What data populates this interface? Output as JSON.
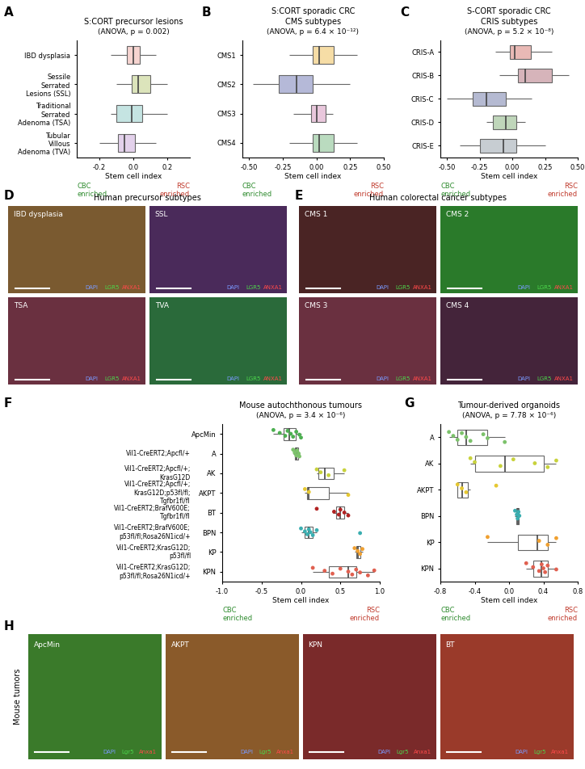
{
  "chart_data": [
    {
      "type": "box",
      "panel": "A",
      "title": "S:CORT precursor lesions",
      "note": "(ANOVA, p = 0.002)",
      "categories": [
        "IBD dysplasia",
        "Sessile Serrated Lesions (SSL)",
        "Traditional Serrated Adenoma (TSA)",
        "Tubular Villous Adenoma (TVA)"
      ],
      "colors": [
        "#e8847a",
        "#9bb43c",
        "#5ab4ac",
        "#b07cc6"
      ],
      "boxes": [
        {
          "low": -0.13,
          "q1": -0.04,
          "median": 0.0,
          "q3": 0.04,
          "high": 0.13
        },
        {
          "low": -0.1,
          "q1": -0.01,
          "median": 0.03,
          "q3": 0.1,
          "high": 0.2
        },
        {
          "low": -0.13,
          "q1": -0.1,
          "median": -0.01,
          "q3": 0.05,
          "high": 0.2
        },
        {
          "low": -0.2,
          "q1": -0.09,
          "median": -0.05,
          "q3": 0.01,
          "high": 0.13
        }
      ],
      "xlabel": "Stem cell index",
      "xlim": [
        -0.33,
        0.33
      ],
      "xticks": [
        -0.2,
        {
          "value": 0,
          "label": "0.0"
        },
        0.2
      ],
      "annotations": [
        {
          "text": "CBC enriched",
          "color": "#2e8b2e"
        },
        {
          "text": "RSC enriched",
          "color": "#c0392b"
        }
      ]
    },
    {
      "type": "box",
      "panel": "B",
      "title": "S:CORT sporadic CRC",
      "subtitle": "CMS subtypes",
      "note": "(ANOVA, p = 6.4 × 10⁻¹²)",
      "categories": [
        "CMS1",
        "CMS2",
        "CMS3",
        "CMS4"
      ],
      "colors": [
        "#e69f00",
        "#2b3990",
        "#c0609b",
        "#3a9a4a"
      ],
      "boxes": [
        {
          "low": -0.2,
          "q1": -0.03,
          "median": 0.02,
          "q3": 0.13,
          "high": 0.3
        },
        {
          "low": -0.47,
          "q1": -0.28,
          "median": -0.15,
          "q3": -0.03,
          "high": 0.25
        },
        {
          "low": -0.17,
          "q1": -0.04,
          "median": 0.0,
          "q3": 0.07,
          "high": 0.12
        },
        {
          "low": -0.2,
          "q1": -0.03,
          "median": 0.02,
          "q3": 0.13,
          "high": 0.3
        }
      ],
      "xlabel": "Stem cell index",
      "xlim": [
        -0.55,
        0.5
      ],
      "xticks": [
        {
          "value": -0.5,
          "label": "-0.50"
        },
        {
          "value": -0.25,
          "label": "-0.25"
        },
        {
          "value": 0,
          "label": "0.00"
        },
        {
          "value": 0.25,
          "label": "0.25"
        },
        {
          "value": 0.5,
          "label": "0.50"
        }
      ],
      "annotations": [
        {
          "text": "CBC enriched",
          "color": "#2e8b2e"
        },
        {
          "text": "RSC enriched",
          "color": "#c0392b"
        }
      ]
    },
    {
      "type": "box",
      "panel": "C",
      "title": "S-CORT sporadic CRC",
      "subtitle": "CRIS subtypes",
      "note": "(ANOVA, p = 5.2 × 10⁻⁸)",
      "categories": [
        "CRIS-A",
        "CRIS-B",
        "CRIS-C",
        "CRIS-D",
        "CRIS-E"
      ],
      "colors": [
        "#c0392b",
        "#8b2a3a",
        "#2b3a80",
        "#4a8a3a",
        "#607080"
      ],
      "boxes": [
        {
          "low": -0.13,
          "q1": -0.02,
          "median": 0.02,
          "q3": 0.14,
          "high": 0.3
        },
        {
          "low": -0.1,
          "q1": 0.04,
          "median": 0.1,
          "q3": 0.3,
          "high": 0.43
        },
        {
          "low": -0.5,
          "q1": -0.3,
          "median": -0.2,
          "q3": -0.05,
          "high": 0.15
        },
        {
          "low": -0.2,
          "q1": -0.15,
          "median": -0.05,
          "q3": 0.03,
          "high": 0.1
        },
        {
          "low": -0.4,
          "q1": -0.25,
          "median": -0.07,
          "q3": 0.03,
          "high": 0.25
        }
      ],
      "xlabel": "Stem cell index",
      "xlim": [
        -0.55,
        0.5
      ],
      "xticks": [
        {
          "value": -0.5,
          "label": "-0.50"
        },
        {
          "value": -0.25,
          "label": "-0.25"
        },
        {
          "value": 0,
          "label": "0.00"
        },
        {
          "value": 0.25,
          "label": "0.25"
        },
        {
          "value": 0.5,
          "label": "0.50"
        }
      ],
      "annotations": [
        {
          "text": "CBC enriched",
          "color": "#2e8b2e"
        },
        {
          "text": "RSC enriched",
          "color": "#c0392b"
        }
      ]
    },
    {
      "type": "box",
      "panel": "F",
      "title": "Mouse autochthonous tumours",
      "note": "(ANOVA, p = 3.4 × 10⁻⁶)",
      "categories": [
        "ApcMin",
        "A",
        "AK",
        "AKPT",
        "BT",
        "BPN",
        "KP",
        "KPN"
      ],
      "genotypes": [
        null,
        "Vil1-CreERT2;Apcfl/+",
        "Vil1-CreERT2;Apcfl/+;KrasG12D",
        "Vil1-CreERT2;Apcfl/+;KrasG12D;p53fl/fl;Tgfbr1fl/fl",
        "Vil1-CreERT2;BrafV600E;Tgfbr1fl/fl",
        "Vil1-CreERT2;BrafV600E;p53fl/fl;Rosa26N1icd/+",
        "Vil1-CreERT2;KrasG12D;p53fl/fl",
        "Vil1-CreERT2;KrasG12D;p53fl/fl;Rosa26N1icd/+"
      ],
      "colors": [
        "#4caf50",
        "#7cc26b",
        "#c8d23c",
        "#e6c832",
        "#b22222",
        "#3aaeb0",
        "#f0a030",
        "#e06050"
      ],
      "boxes": [
        {
          "low": -0.35,
          "q1": -0.22,
          "median": -0.15,
          "q3": -0.07,
          "high": 0.0
        },
        {
          "low": -0.1,
          "q1": -0.08,
          "median": -0.06,
          "q3": -0.04,
          "high": -0.02
        },
        {
          "low": 0.2,
          "q1": 0.22,
          "median": 0.3,
          "q3": 0.42,
          "high": 0.55
        },
        {
          "low": 0.05,
          "q1": 0.08,
          "median": 0.1,
          "q3": 0.35,
          "high": 0.6
        },
        {
          "low": 0.4,
          "q1": 0.45,
          "median": 0.5,
          "q3": 0.55,
          "high": 0.6
        },
        {
          "low": 0.0,
          "q1": 0.05,
          "median": 0.1,
          "q3": 0.15,
          "high": 0.2
        },
        {
          "low": 0.68,
          "q1": 0.7,
          "median": 0.72,
          "q3": 0.75,
          "high": 0.78
        },
        {
          "low": 0.15,
          "q1": 0.35,
          "median": 0.6,
          "q3": 0.7,
          "high": 0.93
        }
      ],
      "points": [
        [
          -0.35,
          -0.27,
          -0.2,
          -0.17,
          -0.13,
          -0.1,
          -0.06,
          -0.02,
          0.0
        ],
        [
          -0.1,
          -0.08,
          -0.06,
          -0.05,
          -0.03,
          -0.02
        ],
        [
          0.2,
          0.25,
          0.35,
          0.55
        ],
        [
          0.05,
          0.1,
          0.6
        ],
        [
          0.2,
          0.42,
          0.48,
          0.5,
          0.55,
          0.6
        ],
        [
          0.0,
          0.05,
          0.08,
          0.1,
          0.12,
          0.15,
          0.2,
          0.75
        ],
        [
          0.68,
          0.72,
          0.75,
          0.78
        ],
        [
          0.15,
          0.3,
          0.4,
          0.5,
          0.6,
          0.65,
          0.7,
          0.75,
          0.85,
          0.93
        ]
      ],
      "xlabel": "Stem cell index",
      "xlim": [
        -1.0,
        1.0
      ],
      "xticks": [
        {
          "value": -1.0,
          "label": "-1.0"
        },
        {
          "value": -0.5,
          "label": "-0.5"
        },
        {
          "value": 0,
          "label": "0.0"
        },
        {
          "value": 0.5,
          "label": "0.5"
        },
        {
          "value": 1.0,
          "label": "1.0"
        }
      ],
      "annotations": [
        {
          "text": "CBC enriched",
          "color": "#2e8b2e"
        },
        {
          "text": "RSC enriched",
          "color": "#c0392b"
        }
      ]
    },
    {
      "type": "box",
      "panel": "G",
      "title": "Tumour-derived organoids",
      "note": "(ANOVA, p = 7.78 × 10⁻⁶)",
      "categories": [
        "A",
        "AK",
        "AKPT",
        "BPN",
        "KP",
        "KPN"
      ],
      "colors": [
        "#7cc26b",
        "#c8d23c",
        "#e6c832",
        "#3aaeb0",
        "#f0a030",
        "#e06050"
      ],
      "boxes": [
        {
          "low": -0.7,
          "q1": -0.6,
          "median": -0.5,
          "q3": -0.25,
          "high": -0.05
        },
        {
          "low": -0.45,
          "q1": -0.4,
          "median": -0.05,
          "q3": 0.4,
          "high": 0.55
        },
        {
          "low": -0.6,
          "q1": -0.6,
          "median": -0.55,
          "q3": -0.48,
          "high": -0.45
        },
        {
          "low": 0.07,
          "q1": 0.08,
          "median": 0.1,
          "q3": 0.11,
          "high": 0.12
        },
        {
          "low": -0.25,
          "q1": 0.1,
          "median": 0.33,
          "q3": 0.45,
          "high": 0.55
        },
        {
          "low": 0.2,
          "q1": 0.28,
          "median": 0.38,
          "q3": 0.45,
          "high": 0.55
        }
      ],
      "points": [
        [
          -0.7,
          -0.65,
          -0.6,
          -0.55,
          -0.5,
          -0.45,
          -0.3,
          -0.25,
          -0.05
        ],
        [
          -0.45,
          -0.4,
          -0.1,
          0.05,
          0.3,
          0.45,
          0.55
        ],
        [
          -0.6,
          -0.55,
          -0.5,
          -0.15
        ],
        [
          0.07,
          0.09,
          0.1,
          0.11,
          0.12
        ],
        [
          -0.25,
          0.35,
          0.45,
          0.55
        ],
        [
          0.2,
          0.28,
          0.35,
          0.38,
          0.4,
          0.42,
          0.45,
          0.55
        ]
      ],
      "xlabel": "Stem cell index",
      "xlim": [
        -0.8,
        0.8
      ],
      "xticks": [
        {
          "value": -0.8,
          "label": "-0.8"
        },
        {
          "value": -0.4,
          "label": "-0.4"
        },
        {
          "value": 0,
          "label": "0.0"
        },
        {
          "value": 0.4,
          "label": "0.4"
        },
        {
          "value": 0.8,
          "label": "0.8"
        }
      ],
      "annotations": [
        {
          "text": "CBC enriched",
          "color": "#2e8b2e"
        },
        {
          "text": "RSC enriched",
          "color": "#c0392b"
        }
      ]
    }
  ],
  "image_panels": [
    {
      "panel": "D",
      "title": "Human precursor subtypes",
      "stains": [
        {
          "text": "DAPI",
          "color": "#7a9aff"
        },
        {
          "text": "LGR5",
          "color": "#4cd64c"
        },
        {
          "text": "ANXA1",
          "color": "#ff4a4a"
        }
      ],
      "images": [
        {
          "label": "IBD dysplasia",
          "color": "#7a5a30"
        },
        {
          "label": "SSL",
          "color": "#4a2a5a"
        },
        {
          "label": "TSA",
          "color": "#6a3040"
        },
        {
          "label": "TVA",
          "color": "#2a6a3a"
        }
      ]
    },
    {
      "panel": "E",
      "title": "Human colorectal cancer subtypes",
      "stains": [
        {
          "text": "DAPI",
          "color": "#7a9aff"
        },
        {
          "text": "LGR5",
          "color": "#4cd64c"
        },
        {
          "text": "ANXA1",
          "color": "#ff4a4a"
        }
      ],
      "images": [
        {
          "label": "CMS 1",
          "color": "#4a2424"
        },
        {
          "label": "CMS 2",
          "color": "#2a7a2a"
        },
        {
          "label": "CMS 3",
          "color": "#6a3040"
        },
        {
          "label": "CMS 4",
          "color": "#44243a"
        }
      ]
    },
    {
      "panel": "H",
      "title": "Mouse tumors",
      "stains": [
        {
          "text": "DAPI",
          "color": "#7a9aff"
        },
        {
          "text": "Lgr5",
          "color": "#4cd64c"
        },
        {
          "text": "Anxa1",
          "color": "#ff4a4a"
        }
      ],
      "images": [
        {
          "label": "ApcMin",
          "color": "#3a7a2a"
        },
        {
          "label": "AKPT",
          "color": "#8a5a2a"
        },
        {
          "label": "KPN",
          "color": "#7a2a2a"
        },
        {
          "label": "BT",
          "color": "#9a3a2a"
        }
      ]
    }
  ]
}
